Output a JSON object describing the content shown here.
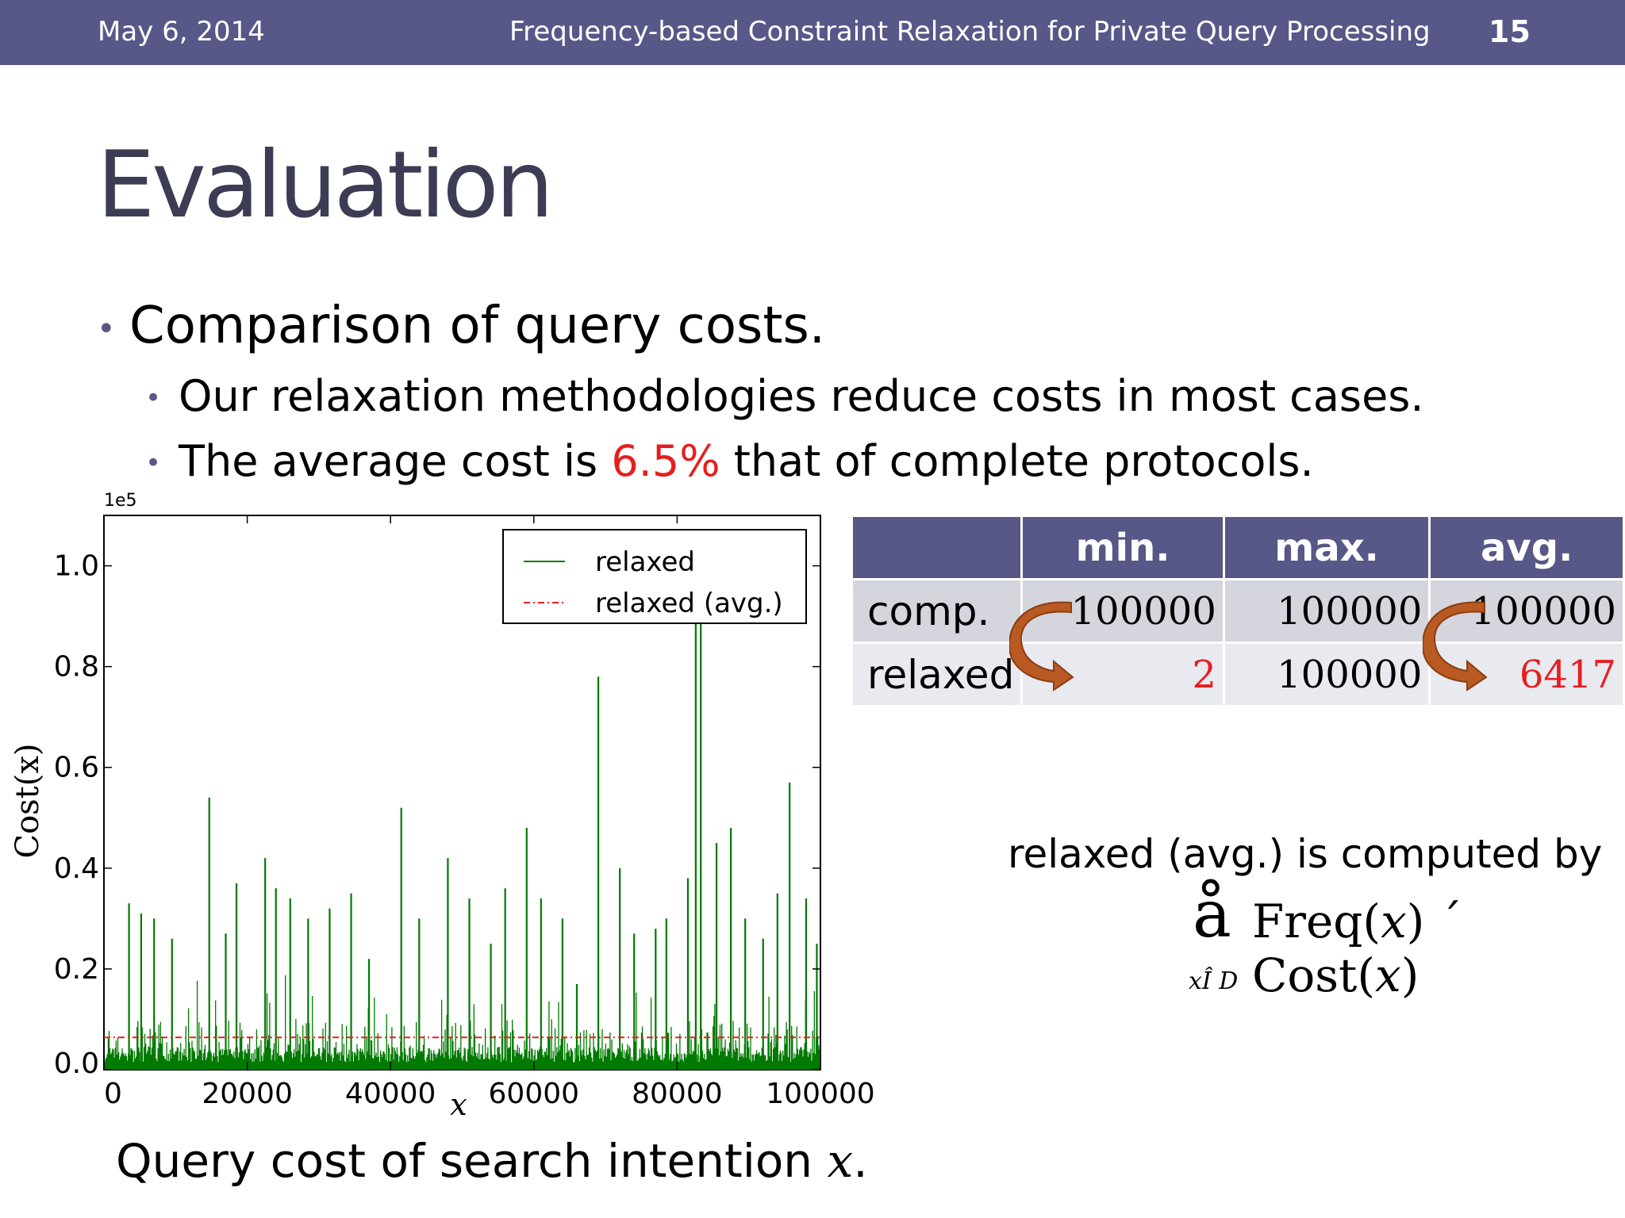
{
  "header": {
    "date": "May 6, 2014",
    "title": "Frequency-based Constraint Relaxation for Private Query Processing",
    "page": "15"
  },
  "slide": {
    "title": "Evaluation",
    "bullet1": "Comparison of query costs.",
    "bullet2": "Our relaxation methodologies reduce costs in most cases.",
    "bullet3": {
      "prefix": "The average cost is ",
      "highlight": "6.5%",
      "suffix": " that of complete protocols."
    },
    "caption": {
      "text": "Query cost of search intention ",
      "var": "x",
      "end": "."
    }
  },
  "chart_data": {
    "type": "line",
    "xlabel": "x",
    "ylabel": "Cost(x)",
    "scale_label": "1e5",
    "xlim": [
      0,
      100000
    ],
    "ylim": [
      0,
      1.1
    ],
    "x_ticks": [
      "0",
      "20000",
      "40000",
      "60000",
      "80000",
      "100000"
    ],
    "x_tick_values": [
      0,
      20000,
      40000,
      60000,
      80000,
      100000
    ],
    "y_ticks": [
      "0.0",
      "0.2",
      "0.4",
      "0.6",
      "0.8",
      "1.0"
    ],
    "y_tick_values": [
      0,
      0.2,
      0.4,
      0.6,
      0.8,
      1.0
    ],
    "series": [
      {
        "name": "relaxed",
        "color": "#007a00",
        "style": "solid",
        "peaks": [
          {
            "x": 3500,
            "y": 0.33
          },
          {
            "x": 5200,
            "y": 0.31
          },
          {
            "x": 7000,
            "y": 0.3
          },
          {
            "x": 9500,
            "y": 0.26
          },
          {
            "x": 14700,
            "y": 0.54
          },
          {
            "x": 17000,
            "y": 0.27
          },
          {
            "x": 18500,
            "y": 0.37
          },
          {
            "x": 22500,
            "y": 0.42
          },
          {
            "x": 24000,
            "y": 0.36
          },
          {
            "x": 26000,
            "y": 0.34
          },
          {
            "x": 28500,
            "y": 0.3
          },
          {
            "x": 31500,
            "y": 0.32
          },
          {
            "x": 34500,
            "y": 0.35
          },
          {
            "x": 37000,
            "y": 0.22
          },
          {
            "x": 41500,
            "y": 0.52
          },
          {
            "x": 44000,
            "y": 0.3
          },
          {
            "x": 48000,
            "y": 0.42
          },
          {
            "x": 51000,
            "y": 0.34
          },
          {
            "x": 54000,
            "y": 0.25
          },
          {
            "x": 56000,
            "y": 0.36
          },
          {
            "x": 59000,
            "y": 0.48
          },
          {
            "x": 61000,
            "y": 0.34
          },
          {
            "x": 64000,
            "y": 0.3
          },
          {
            "x": 66000,
            "y": 0.17
          },
          {
            "x": 69000,
            "y": 0.78
          },
          {
            "x": 72000,
            "y": 0.4
          },
          {
            "x": 74000,
            "y": 0.27
          },
          {
            "x": 77000,
            "y": 0.28
          },
          {
            "x": 78500,
            "y": 0.3
          },
          {
            "x": 81500,
            "y": 0.38
          },
          {
            "x": 82600,
            "y": 0.9
          },
          {
            "x": 83300,
            "y": 0.9
          },
          {
            "x": 85500,
            "y": 0.45
          },
          {
            "x": 87500,
            "y": 0.48
          },
          {
            "x": 89500,
            "y": 0.3
          },
          {
            "x": 92000,
            "y": 0.26
          },
          {
            "x": 94000,
            "y": 0.35
          },
          {
            "x": 95700,
            "y": 0.57
          },
          {
            "x": 98000,
            "y": 0.34
          },
          {
            "x": 99500,
            "y": 0.25
          }
        ]
      },
      {
        "name": "relaxed (avg.)",
        "color": "#e61e1e",
        "style": "dashdot",
        "value": 0.06417
      }
    ],
    "legend": "top-right"
  },
  "stats_table": {
    "columns": [
      "",
      "min.",
      "max.",
      "avg."
    ],
    "rows": [
      {
        "label": "comp.",
        "values": [
          "100000",
          "100000",
          "100000"
        ],
        "red": [
          false,
          false,
          false
        ]
      },
      {
        "label": "relaxed",
        "values": [
          "2",
          "100000",
          "6417"
        ],
        "red": [
          true,
          false,
          true
        ]
      }
    ]
  },
  "formula": {
    "text": "relaxed (avg.) is computed by",
    "sum_symbol": "å",
    "body_parts": [
      "Freq(",
      "x",
      ") ´ Cost(",
      "x",
      ")"
    ],
    "subscript": "xÎ D"
  },
  "colors": {
    "header_bg": "#575788",
    "title": "#3c3c54",
    "accent_red": "#e61e1e",
    "arrow": "#b95a23"
  }
}
